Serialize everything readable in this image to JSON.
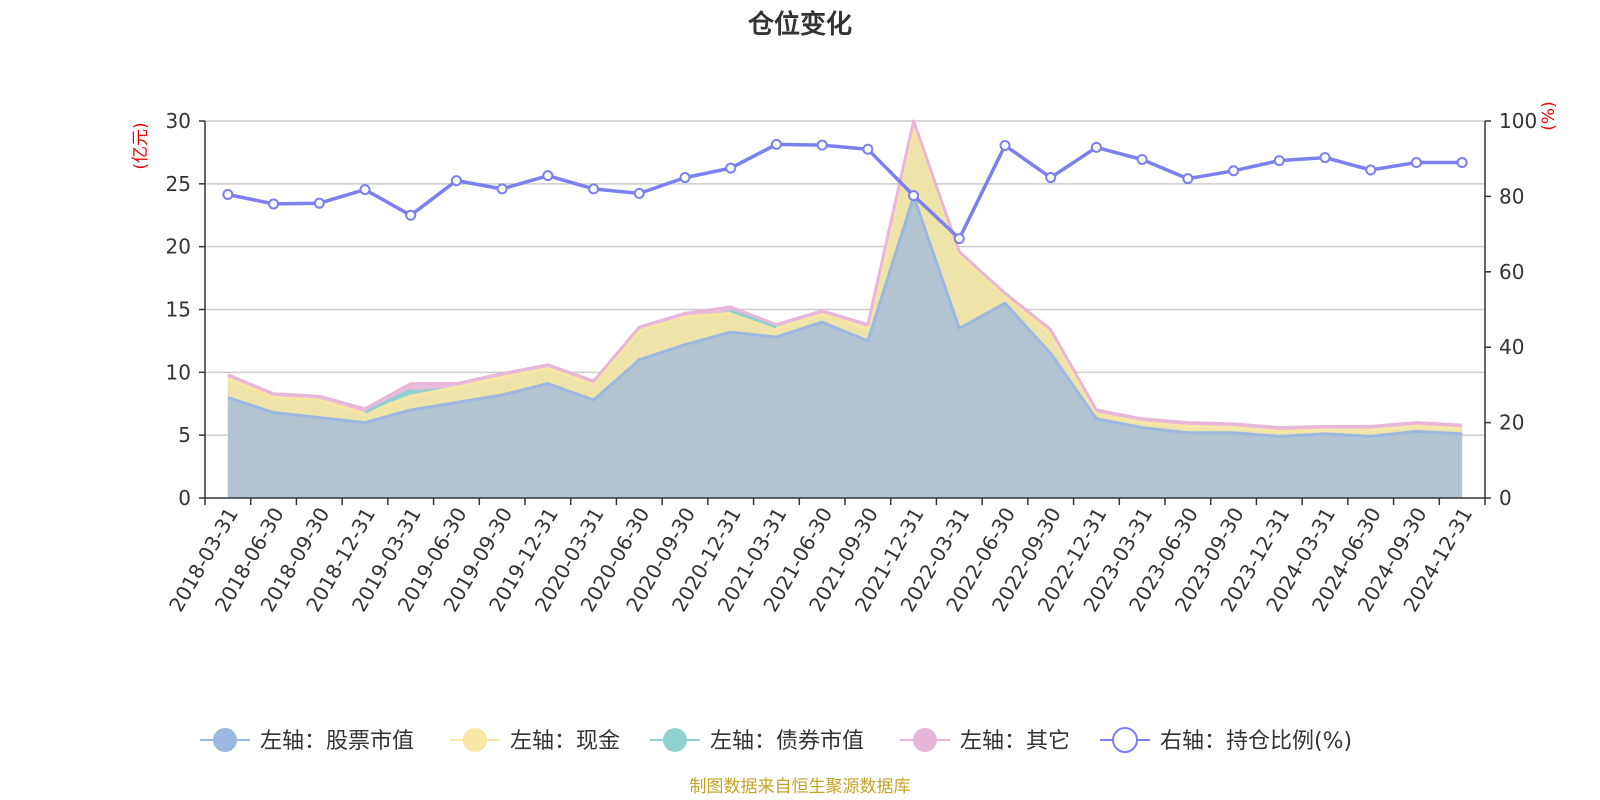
{
  "chart_data": {
    "type": "area",
    "title": "仓位变化",
    "left_axis": {
      "unit": "(亿元)",
      "ylim": [
        0,
        30
      ],
      "ticks": [
        0,
        5,
        10,
        15,
        20,
        25,
        30
      ]
    },
    "right_axis": {
      "unit": "(%)",
      "ylim": [
        0,
        100
      ],
      "ticks": [
        0,
        20,
        40,
        60,
        80,
        100
      ]
    },
    "categories": [
      "2018-03-31",
      "2018-06-30",
      "2018-09-30",
      "2018-12-31",
      "2019-03-31",
      "2019-06-30",
      "2019-09-30",
      "2019-12-31",
      "2020-03-31",
      "2020-06-30",
      "2020-09-30",
      "2020-12-31",
      "2021-03-31",
      "2021-06-30",
      "2021-09-30",
      "2021-12-31",
      "2022-03-31",
      "2022-06-30",
      "2022-09-30",
      "2022-12-31",
      "2023-03-31",
      "2023-06-30",
      "2023-09-30",
      "2023-12-31",
      "2024-03-31",
      "2024-06-30",
      "2024-09-30",
      "2024-12-31"
    ],
    "series": [
      {
        "name": "左轴：股票市值",
        "axis": "left",
        "color": "#9db8e0",
        "values": [
          8.0,
          6.8,
          6.4,
          6.0,
          7.0,
          7.6,
          8.2,
          9.1,
          7.8,
          11.0,
          12.2,
          13.2,
          12.8,
          14.0,
          12.5,
          24.0,
          13.5,
          15.5,
          11.5,
          6.3,
          5.6,
          5.2,
          5.2,
          4.9,
          5.1,
          4.9,
          5.3,
          5.1
        ]
      },
      {
        "name": "左轴：现金",
        "axis": "left",
        "color": "#f7e6a4",
        "values": [
          1.5,
          1.2,
          1.4,
          0.7,
          1.1,
          1.2,
          1.4,
          1.2,
          1.2,
          2.3,
          2.2,
          1.5,
          0.7,
          0.6,
          1.0,
          5.5,
          5.8,
          0.5,
          1.6,
          0.4,
          0.4,
          0.5,
          0.4,
          0.4,
          0.3,
          0.5,
          0.4,
          0.4
        ]
      },
      {
        "name": "左轴：债券市值",
        "axis": "left",
        "color": "#8fd1d0",
        "values": [
          0,
          0,
          0,
          0.1,
          0.5,
          0,
          0,
          0,
          0,
          0,
          0,
          0.2,
          0.1,
          0,
          0,
          0,
          0,
          0,
          0,
          0,
          0,
          0,
          0,
          0,
          0,
          0,
          0,
          0
        ]
      },
      {
        "name": "左轴：其它",
        "axis": "left",
        "color": "#e8b6d8",
        "values": [
          0.3,
          0.3,
          0.3,
          0.3,
          0.5,
          0.3,
          0.3,
          0.3,
          0.3,
          0.3,
          0.3,
          0.3,
          0.2,
          0.3,
          0.3,
          0.5,
          0.3,
          0.3,
          0.3,
          0.3,
          0.3,
          0.3,
          0.3,
          0.3,
          0.3,
          0.3,
          0.3,
          0.3
        ]
      },
      {
        "name": "右轴：持仓比例(%)",
        "axis": "right",
        "color": "#7b7ff0",
        "values": [
          80.5,
          78.0,
          78.2,
          81.8,
          75.0,
          84.2,
          82.0,
          85.5,
          82.0,
          80.8,
          85.0,
          87.5,
          93.8,
          93.6,
          92.5,
          80.2,
          68.8,
          93.5,
          85.0,
          93.0,
          89.8,
          84.7,
          86.8,
          89.5,
          90.3,
          87.0,
          89.0,
          89.0
        ]
      }
    ],
    "legend_position": "bottom-center",
    "grid": true
  },
  "footer": {
    "source": "制图数据来自恒生聚源数据库"
  }
}
